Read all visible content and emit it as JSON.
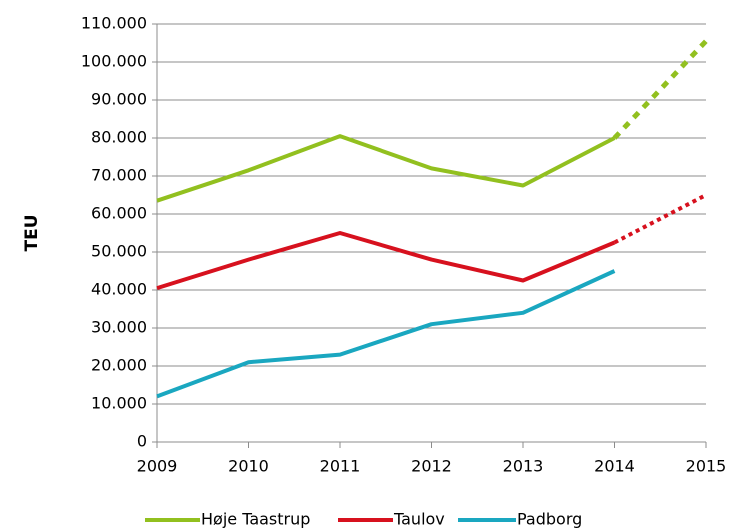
{
  "chart_data": {
    "type": "line",
    "y_label": "TEU",
    "x": [
      2009,
      2010,
      2011,
      2012,
      2013,
      2014,
      2015
    ],
    "xlim": [
      2009,
      2015
    ],
    "xticks": [
      2009,
      2010,
      2011,
      2012,
      2013,
      2014,
      2015
    ],
    "ylim": [
      0,
      110000
    ],
    "yticks": [
      {
        "value": 0,
        "label": "0"
      },
      {
        "value": 10000,
        "label": "10.000"
      },
      {
        "value": 20000,
        "label": "20.000"
      },
      {
        "value": 30000,
        "label": "30.000"
      },
      {
        "value": 40000,
        "label": "40.000"
      },
      {
        "value": 50000,
        "label": "50.000"
      },
      {
        "value": 60000,
        "label": "60.000"
      },
      {
        "value": 70000,
        "label": "70.000"
      },
      {
        "value": 80000,
        "label": "80.000"
      },
      {
        "value": 90000,
        "label": "90.000"
      },
      {
        "value": 100000,
        "label": "100.000"
      },
      {
        "value": 110000,
        "label": "110.000"
      }
    ],
    "grid": true,
    "legend": "bottom",
    "dashed_from": 2014,
    "series": [
      {
        "name": "Høje Taastrup",
        "color": "#92c01f",
        "values": [
          63500,
          71500,
          80500,
          72000,
          67500,
          80000,
          105500
        ]
      },
      {
        "name": "Taulov",
        "color": "#d7111e",
        "values": [
          40500,
          48000,
          55000,
          48000,
          42500,
          52500,
          65000
        ]
      },
      {
        "name": "Padborg",
        "color": "#1aa7c0",
        "values": [
          12000,
          21000,
          23000,
          31000,
          34000,
          45000,
          null
        ]
      }
    ]
  }
}
